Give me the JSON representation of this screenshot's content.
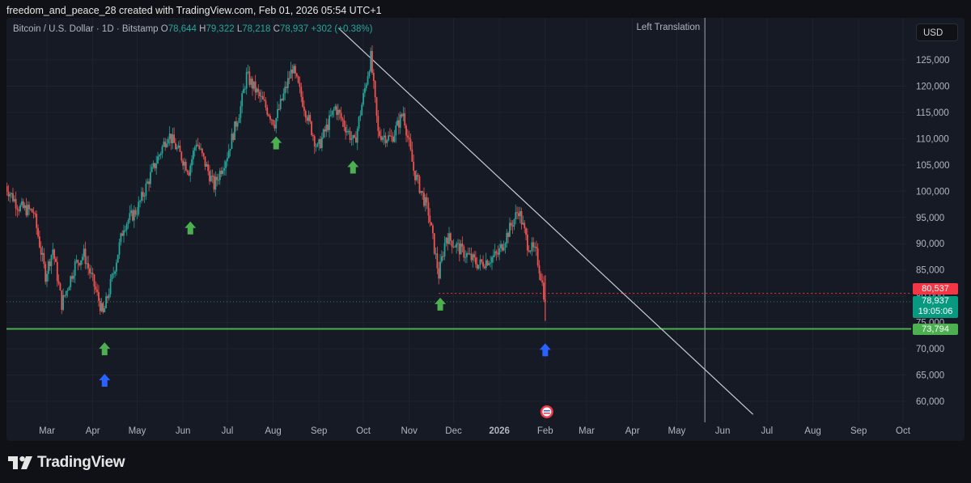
{
  "credit": "freedom_and_peace_28 created with TradingView.com, Feb 01, 2026 05:54 UTC+1",
  "symbol": {
    "name": "Bitcoin / U.S. Dollar · 1D · Bitstamp",
    "o_label": "O",
    "o": "78,644",
    "h_label": "H",
    "h": "79,322",
    "l_label": "L",
    "l": "78,218",
    "c_label": "C",
    "c": "78,937",
    "change": "+302 (+0.38%)"
  },
  "currency_button": "USD",
  "annotation": "Left Translation",
  "brand": "TradingView",
  "colors": {
    "up": "#26a69a",
    "down": "#ef5350",
    "support": "#4caf50",
    "resistance": "#f23645",
    "arrow_green": "#4caf50",
    "arrow_blue": "#2962ff"
  },
  "price_tags": {
    "resistance": "80,537",
    "last": "78,937",
    "countdown": "19:05:06",
    "support": "73,794"
  },
  "chart_data": {
    "type": "candlestick",
    "y_axis_ticks": [
      "125,000",
      "120,000",
      "115,000",
      "110,000",
      "105,000",
      "100,000",
      "95,000",
      "90,000",
      "85,000",
      "80,000",
      "75,000",
      "70,000",
      "65,000",
      "60,000"
    ],
    "x_axis_ticks": [
      "Mar",
      "Apr",
      "May",
      "Jun",
      "Jul",
      "Aug",
      "Sep",
      "Oct",
      "Nov",
      "Dec",
      "2026",
      "Feb",
      "Mar",
      "Apr",
      "May",
      "Jun",
      "Jul",
      "Aug",
      "Sep",
      "Oct"
    ],
    "ylim": [
      56000,
      130000
    ],
    "price_path": [
      [
        "2025-02-01",
        101000
      ],
      [
        "2025-02-10",
        97000
      ],
      [
        "2025-02-20",
        96000
      ],
      [
        "2025-02-28",
        84000
      ],
      [
        "2025-03-05",
        89000
      ],
      [
        "2025-03-11",
        78500
      ],
      [
        "2025-03-20",
        86000
      ],
      [
        "2025-03-26",
        88000
      ],
      [
        "2025-04-02",
        82000
      ],
      [
        "2025-04-08",
        76500
      ],
      [
        "2025-04-15",
        84500
      ],
      [
        "2025-04-22",
        93500
      ],
      [
        "2025-05-01",
        96500
      ],
      [
        "2025-05-10",
        103000
      ],
      [
        "2025-05-22",
        111000
      ],
      [
        "2025-06-05",
        104000
      ],
      [
        "2025-06-10",
        109500
      ],
      [
        "2025-06-22",
        101000
      ],
      [
        "2025-07-01",
        107000
      ],
      [
        "2025-07-10",
        116000
      ],
      [
        "2025-07-14",
        122000
      ],
      [
        "2025-07-25",
        117000
      ],
      [
        "2025-08-02",
        113000
      ],
      [
        "2025-08-14",
        123500
      ],
      [
        "2025-08-31",
        108000
      ],
      [
        "2025-09-12",
        116000
      ],
      [
        "2025-09-25",
        109000
      ],
      [
        "2025-10-06",
        125500
      ],
      [
        "2025-10-11",
        111000
      ],
      [
        "2025-10-20",
        110000
      ],
      [
        "2025-10-28",
        115000
      ],
      [
        "2025-11-04",
        104000
      ],
      [
        "2025-11-14",
        96000
      ],
      [
        "2025-11-21",
        84000
      ],
      [
        "2025-11-26",
        91500
      ],
      [
        "2025-12-05",
        89000
      ],
      [
        "2025-12-18",
        86000
      ],
      [
        "2025-12-31",
        88000
      ],
      [
        "2026-01-14",
        96500
      ],
      [
        "2026-01-20",
        90000
      ],
      [
        "2026-01-26",
        88000
      ],
      [
        "2026-01-29",
        84000
      ],
      [
        "2026-02-01",
        78937
      ]
    ],
    "last_candle": {
      "o": 78644,
      "h": 79322,
      "l": 78218,
      "c": 78937
    },
    "trendline": {
      "from": [
        "2025-10-06",
        126000
      ],
      "to": [
        "2026-06-15",
        57500
      ]
    },
    "horizontal_levels": [
      {
        "price": 73794,
        "style": "solid"
      },
      {
        "price": 80537,
        "style": "dotted",
        "from": "2025-11-21"
      },
      {
        "price": 78937,
        "style": "dotted-last"
      }
    ],
    "vertical_line": {
      "date": "2026-05-20"
    },
    "arrows": [
      {
        "date": "2025-06-06",
        "price": 93000,
        "color": "green"
      },
      {
        "date": "2025-08-03",
        "price": 109200,
        "color": "green"
      },
      {
        "date": "2025-09-24",
        "price": 104600,
        "color": "green"
      },
      {
        "date": "2025-11-22",
        "price": 78500,
        "color": "green"
      },
      {
        "date": "2025-04-09",
        "price": 70000,
        "color": "green"
      },
      {
        "date": "2025-04-09",
        "price": 64000,
        "color": "blue"
      },
      {
        "date": "2026-02-01",
        "price": 69800,
        "color": "blue"
      }
    ]
  }
}
